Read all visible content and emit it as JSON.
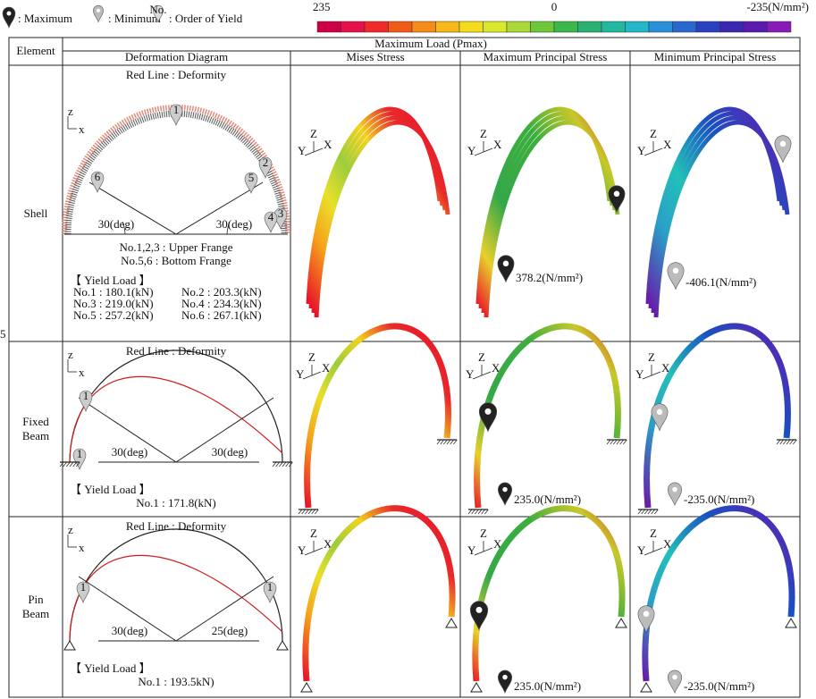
{
  "legend": {
    "maximum": ": Maximum",
    "minimum": ": Minimum",
    "order": ": Order of Yield",
    "order_symbol": "No.",
    "scale_labels": [
      "235",
      "0",
      "-235(N/mm²)"
    ]
  },
  "margin_mark": "5",
  "axes": {
    "local": [
      "z",
      "x"
    ],
    "global": [
      "Y",
      "Z",
      "X"
    ]
  },
  "table": {
    "element_header": "Element",
    "load_header": "Maximum Load (Pmax)",
    "columns": [
      "Deformation Diagram",
      "Mises Stress",
      "Maximum Principal Stress",
      "Minimum Principal Stress"
    ],
    "rows": [
      {
        "element": [
          "Shell"
        ],
        "deformation": {
          "caption": "Red Line : Deformity",
          "angles": [
            "30(deg)",
            "30(deg)"
          ],
          "yield_order": [
            "1",
            "2",
            "3",
            "4",
            "5",
            "6"
          ],
          "notes": [
            "No.1,2,3 : Upper Frange",
            "No.5,6   : Bottom Frange"
          ],
          "yield_title": "【  Yield Load  】",
          "yield_loads": [
            "No.1 : 180.1(kN)",
            "No.2 : 203.3(kN)",
            "No.3 : 219.0(kN)",
            "No.4 : 234.3(kN)",
            "No.5 : 257.2(kN)",
            "No.6 : 267.1(kN)"
          ]
        },
        "max_principal": "378.2(N/mm²)",
        "min_principal": "-406.1(N/mm²)"
      },
      {
        "element": [
          "Fixed",
          "Beam"
        ],
        "deformation": {
          "caption": "Red Line : Deformity",
          "angles": [
            "30(deg)",
            "30(deg)"
          ],
          "yield_order": [
            "1",
            "1"
          ],
          "yield_title": "【  Yield Load  】",
          "yield_loads": [
            "No.1 : 171.8(kN)"
          ]
        },
        "max_principal": "235.0(N/mm²)",
        "min_principal": "-235.0(N/mm²)"
      },
      {
        "element": [
          "Pin",
          "Beam"
        ],
        "deformation": {
          "caption": "Red Line : Deformity",
          "angles": [
            "30(deg)",
            "25(deg)"
          ],
          "yield_order": [
            "1",
            "1"
          ],
          "yield_title": "【  Yield Load  】",
          "yield_loads": [
            "No.1 : 193.5kN)"
          ]
        },
        "max_principal": "235.0(N/mm²)",
        "min_principal": "-235.0(N/mm²)"
      }
    ]
  }
}
